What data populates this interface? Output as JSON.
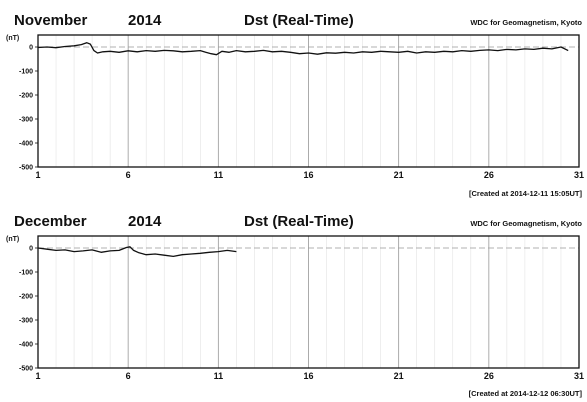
{
  "chart_data": [
    {
      "type": "line",
      "month_label": "November",
      "year_label": "2014",
      "title": "Dst (Real-Time)",
      "source": "WDC for Geomagnetism, Kyoto",
      "ylabel": "(nT)",
      "ylim": [
        -500,
        50
      ],
      "yticks": [
        "0",
        "-100",
        "-200",
        "-300",
        "-400",
        "-500"
      ],
      "ytick_values": [
        0,
        -100,
        -200,
        -300,
        -400,
        -500
      ],
      "xlim": [
        1,
        31
      ],
      "xticks": [
        "1",
        "6",
        "11",
        "16",
        "21",
        "26",
        "31"
      ],
      "xtick_values": [
        1,
        6,
        11,
        16,
        21,
        26,
        31
      ],
      "created": "[Created at 2014-12-11 15:05UT]",
      "series": [
        {
          "x": [
            1,
            1.5,
            2,
            2.5,
            3,
            3.4,
            3.7,
            3.9,
            4.1,
            4.3,
            4.6,
            5,
            5.5,
            6,
            6.5,
            7,
            7.5,
            8,
            8.5,
            9,
            9.5,
            10,
            10.3,
            10.6,
            10.9,
            11.2,
            11.6,
            12,
            12.5,
            13,
            13.5,
            14,
            14.5,
            15,
            15.5,
            16,
            16.5,
            17,
            17.5,
            18,
            18.5,
            19,
            19.5,
            20,
            20.5,
            21,
            21.5,
            22,
            22.5,
            23,
            23.5,
            24,
            24.5,
            25,
            25.5,
            26,
            26.5,
            27,
            27.5,
            28,
            28.5,
            29,
            29.5,
            30,
            30.4
          ],
          "y": [
            -2,
            0,
            -3,
            2,
            5,
            10,
            18,
            12,
            -15,
            -25,
            -20,
            -18,
            -22,
            -16,
            -20,
            -15,
            -18,
            -14,
            -16,
            -20,
            -18,
            -15,
            -22,
            -28,
            -32,
            -18,
            -22,
            -15,
            -20,
            -18,
            -14,
            -20,
            -18,
            -22,
            -28,
            -25,
            -30,
            -24,
            -26,
            -22,
            -25,
            -20,
            -22,
            -18,
            -20,
            -22,
            -18,
            -25,
            -20,
            -22,
            -18,
            -20,
            -15,
            -18,
            -14,
            -12,
            -15,
            -10,
            -12,
            -8,
            -10,
            -5,
            -8,
            0,
            -15
          ]
        }
      ]
    },
    {
      "type": "line",
      "month_label": "December",
      "year_label": "2014",
      "title": "Dst (Real-Time)",
      "source": "WDC for Geomagnetism, Kyoto",
      "ylabel": "(nT)",
      "ylim": [
        -500,
        50
      ],
      "yticks": [
        "0",
        "-100",
        "-200",
        "-300",
        "-400",
        "-500"
      ],
      "ytick_values": [
        0,
        -100,
        -200,
        -300,
        -400,
        -500
      ],
      "xlim": [
        1,
        31
      ],
      "xticks": [
        "1",
        "6",
        "11",
        "16",
        "21",
        "26",
        "31"
      ],
      "xtick_values": [
        1,
        6,
        11,
        16,
        21,
        26,
        31
      ],
      "created": "[Created at 2014-12-12 06:30UT]",
      "series": [
        {
          "x": [
            1,
            1.5,
            2,
            2.5,
            3,
            3.5,
            4,
            4.5,
            5,
            5.5,
            5.9,
            6.1,
            6.3,
            6.6,
            7,
            7.5,
            8,
            8.5,
            9,
            9.5,
            10,
            10.5,
            11,
            11.5,
            12
          ],
          "y": [
            0,
            -5,
            -10,
            -8,
            -15,
            -12,
            -8,
            -18,
            -12,
            -10,
            2,
            5,
            -10,
            -20,
            -28,
            -25,
            -30,
            -35,
            -28,
            -25,
            -22,
            -18,
            -15,
            -10,
            -15
          ]
        }
      ]
    }
  ]
}
